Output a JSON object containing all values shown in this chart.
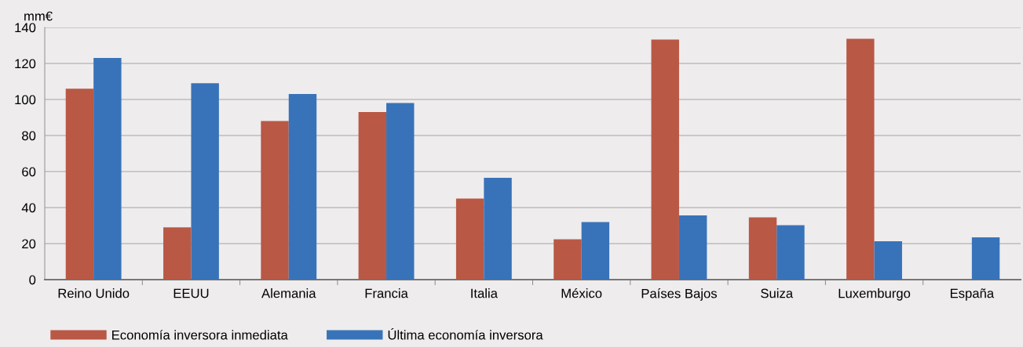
{
  "chart_data": {
    "type": "bar",
    "ylabel": "mm€",
    "categories": [
      "Reino Unido",
      "EEUU",
      "Alemania",
      "Francia",
      "Italia",
      "México",
      "Países Bajos",
      "Suiza",
      "Luxemburgo",
      "España"
    ],
    "series": [
      {
        "name": "Economía inversora inmediata",
        "color": "#b95845",
        "values": [
          106,
          29,
          88,
          93,
          45,
          22.4,
          133.3,
          34.6,
          133.7,
          null
        ]
      },
      {
        "name": "Última economía inversora",
        "color": "#3873b9",
        "values": [
          123,
          109,
          103,
          98,
          56.5,
          32,
          35.6,
          30.2,
          21.3,
          23.5
        ]
      }
    ],
    "ylim": [
      0,
      140
    ],
    "yticks": [
      0,
      20,
      40,
      60,
      80,
      100,
      120,
      140
    ],
    "grid": "y",
    "legend": "bottom"
  }
}
